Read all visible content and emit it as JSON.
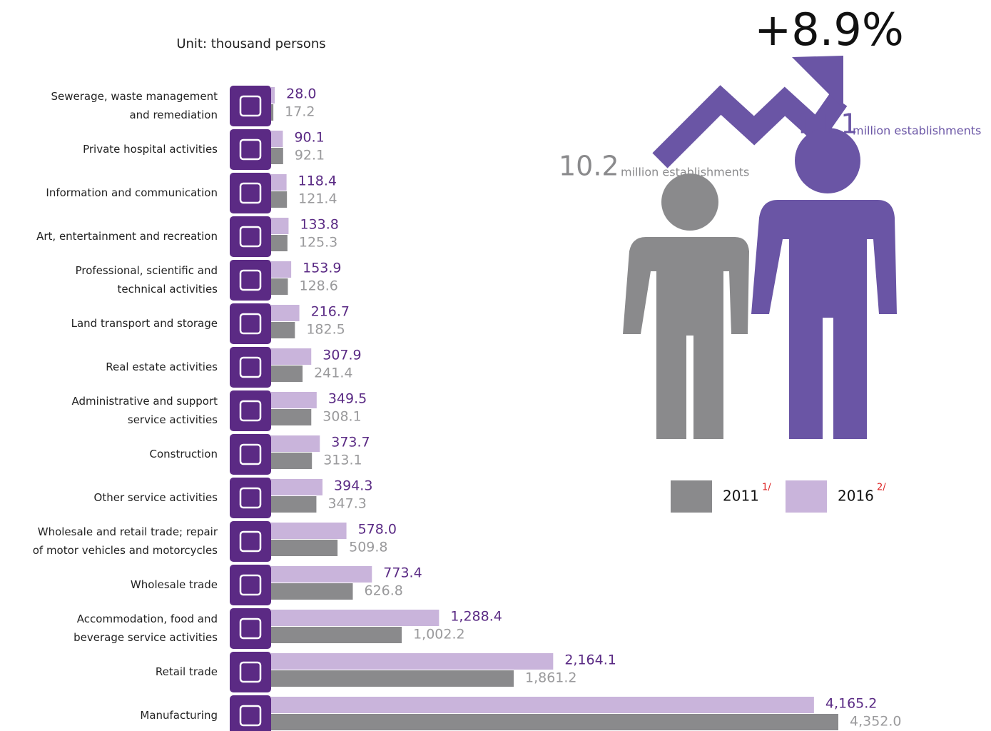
{
  "chart_data": {
    "type": "bar",
    "orientation": "horizontal",
    "subtitle": "Unit: thousand persons",
    "categories": [
      "Sewerage, waste management and remediation",
      "Private hospital activities",
      "Information and communication",
      "Art, entertainment and recreation",
      "Professional, scientific and technical activities",
      "Land transport and storage",
      "Real estate activities",
      "Administrative and support service activities",
      "Construction",
      "Other service activities",
      "Wholesale and retail trade; repair of motor vehicles and motorcycles",
      "Wholesale trade",
      "Accommodation, food and beverage service activities",
      "Retail trade",
      "Manufacturing"
    ],
    "series": [
      {
        "name": "2011",
        "note": "1/",
        "color": "#8a8a8c",
        "label_color": "#9a9a9c",
        "values": [
          17.2,
          92.1,
          121.4,
          125.3,
          128.6,
          182.5,
          241.4,
          308.1,
          313.1,
          347.3,
          509.8,
          626.8,
          1002.2,
          1861.2,
          4352.0
        ],
        "value_labels": [
          "17.2",
          "92.1",
          "121.4",
          "125.3",
          "128.6",
          "182.5",
          "241.4",
          "308.1",
          "313.1",
          "347.3",
          "509.8",
          "626.8",
          "1,002.2",
          "1,861.2",
          "4,352.0"
        ]
      },
      {
        "name": "2016",
        "note": "2/",
        "color": "#c9b4db",
        "label_color": "#5a2a84",
        "values": [
          28.0,
          90.1,
          118.4,
          133.8,
          153.9,
          216.7,
          307.9,
          349.5,
          373.7,
          394.3,
          578.0,
          773.4,
          1288.4,
          2164.1,
          4165.2
        ],
        "value_labels": [
          "28.0",
          "90.1",
          "118.4",
          "133.8",
          "153.9",
          "216.7",
          "307.9",
          "349.5",
          "373.7",
          "394.3",
          "578.0",
          "773.4",
          "1,288.4",
          "2,164.1",
          "4,165.2"
        ]
      }
    ],
    "headline": "+8.9%",
    "annotations": [
      {
        "value": 10.2,
        "text": "million establishments",
        "color": "#8a8a8c"
      },
      {
        "value": 11.1,
        "text": "million establishments",
        "color": "#6a55a5"
      }
    ]
  }
}
